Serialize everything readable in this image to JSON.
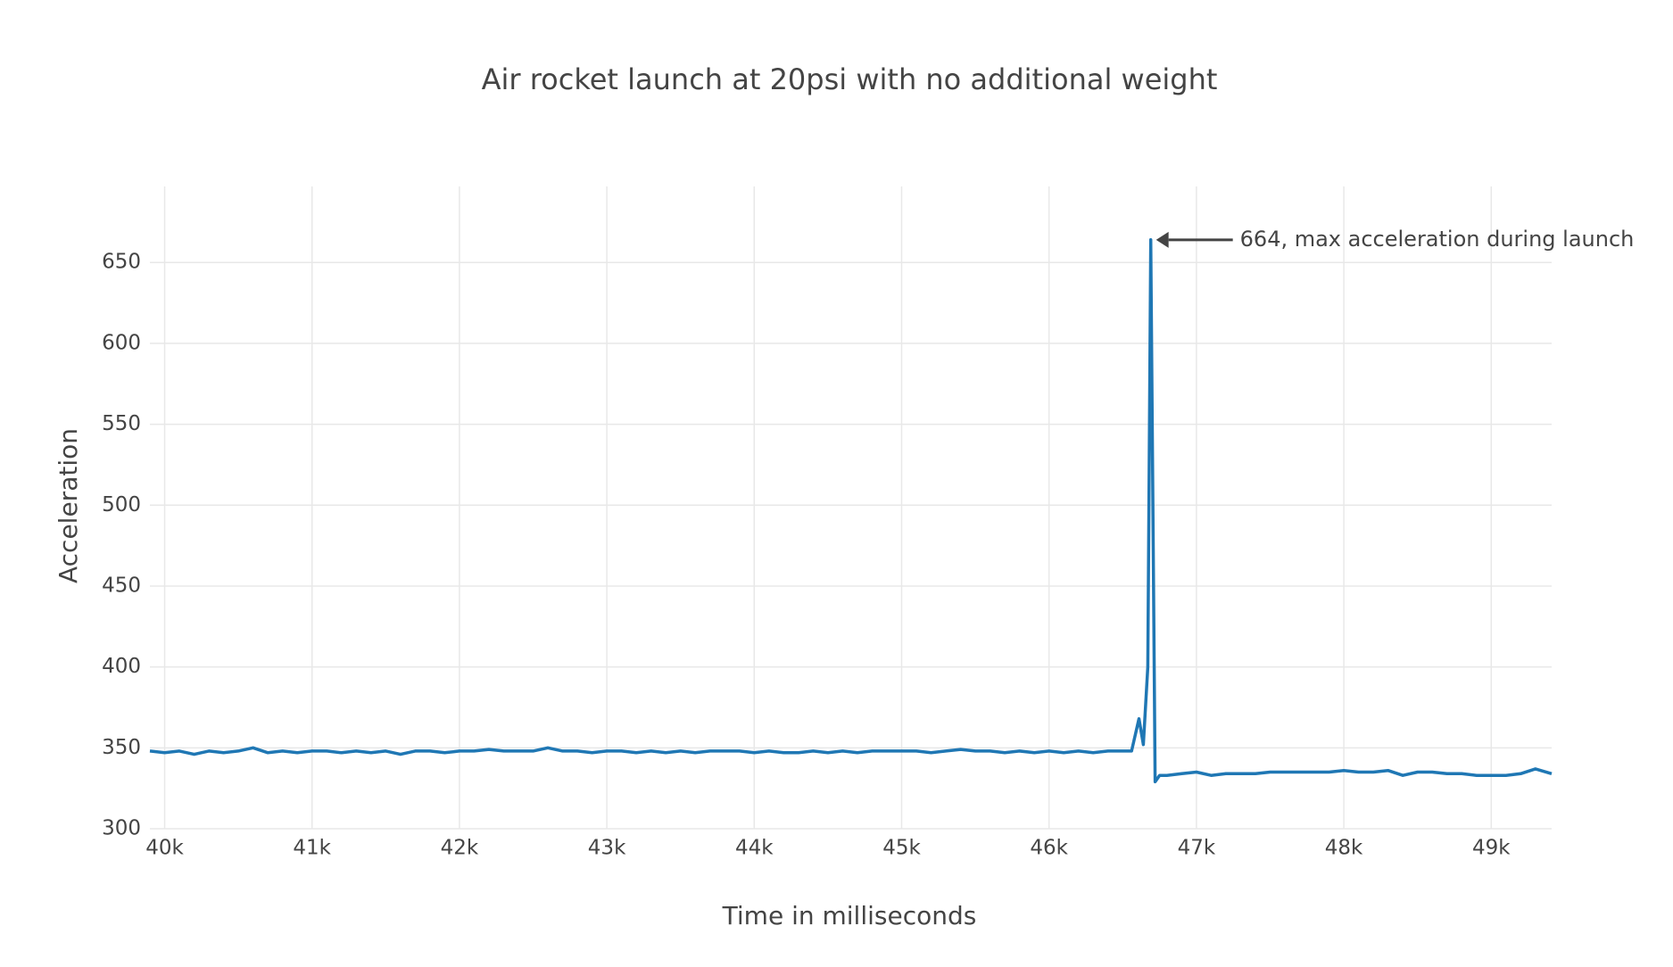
{
  "chart_data": {
    "type": "line",
    "title": "Air rocket launch at 20psi with no additional weight",
    "x_label": "Time in milliseconds",
    "y_label": "Acceleration",
    "xlim": [
      39900,
      49410
    ],
    "ylim": [
      300,
      697
    ],
    "xticks": [
      {
        "value": 40000,
        "label": "40k"
      },
      {
        "value": 41000,
        "label": "41k"
      },
      {
        "value": 42000,
        "label": "42k"
      },
      {
        "value": 43000,
        "label": "43k"
      },
      {
        "value": 44000,
        "label": "44k"
      },
      {
        "value": 45000,
        "label": "45k"
      },
      {
        "value": 46000,
        "label": "46k"
      },
      {
        "value": 47000,
        "label": "47k"
      },
      {
        "value": 48000,
        "label": "48k"
      },
      {
        "value": 49000,
        "label": "49k"
      }
    ],
    "yticks": [
      300,
      350,
      400,
      450,
      500,
      550,
      600,
      650
    ],
    "grid": true,
    "series": [
      {
        "color": "#1f77b4",
        "x": [
          39900,
          40000,
          40100,
          40200,
          40300,
          40400,
          40500,
          40600,
          40700,
          40800,
          40900,
          41000,
          41100,
          41200,
          41300,
          41400,
          41500,
          41600,
          41700,
          41800,
          41900,
          42000,
          42100,
          42200,
          42300,
          42400,
          42500,
          42600,
          42700,
          42800,
          42900,
          43000,
          43100,
          43200,
          43300,
          43400,
          43500,
          43600,
          43700,
          43800,
          43900,
          44000,
          44100,
          44200,
          44300,
          44400,
          44500,
          44600,
          44700,
          44800,
          44900,
          45000,
          45100,
          45200,
          45300,
          45400,
          45500,
          45600,
          45700,
          45800,
          45900,
          46000,
          46100,
          46200,
          46300,
          46400,
          46500,
          46560,
          46610,
          46640,
          46670,
          46690,
          46720,
          46750,
          46800,
          46900,
          47000,
          47100,
          47200,
          47300,
          47400,
          47500,
          47600,
          47700,
          47800,
          47900,
          48000,
          48100,
          48200,
          48300,
          48400,
          48500,
          48600,
          48700,
          48800,
          48900,
          49000,
          49100,
          49200,
          49300,
          49410
        ],
        "values": [
          348,
          347,
          348,
          346,
          348,
          347,
          348,
          350,
          347,
          348,
          347,
          348,
          348,
          347,
          348,
          347,
          348,
          346,
          348,
          348,
          347,
          348,
          348,
          349,
          348,
          348,
          348,
          350,
          348,
          348,
          347,
          348,
          348,
          347,
          348,
          347,
          348,
          347,
          348,
          348,
          348,
          347,
          348,
          347,
          347,
          348,
          347,
          348,
          347,
          348,
          348,
          348,
          348,
          347,
          348,
          349,
          348,
          348,
          347,
          348,
          347,
          348,
          347,
          348,
          347,
          348,
          348,
          348,
          368,
          352,
          400,
          664,
          329,
          333,
          333,
          334,
          335,
          333,
          334,
          334,
          334,
          335,
          335,
          335,
          335,
          335,
          336,
          335,
          335,
          336,
          333,
          335,
          335,
          334,
          334,
          333,
          333,
          333,
          334,
          337,
          334
        ]
      }
    ],
    "annotation": {
      "text": "664, max acceleration during launch",
      "x": 46690,
      "y": 664
    }
  }
}
